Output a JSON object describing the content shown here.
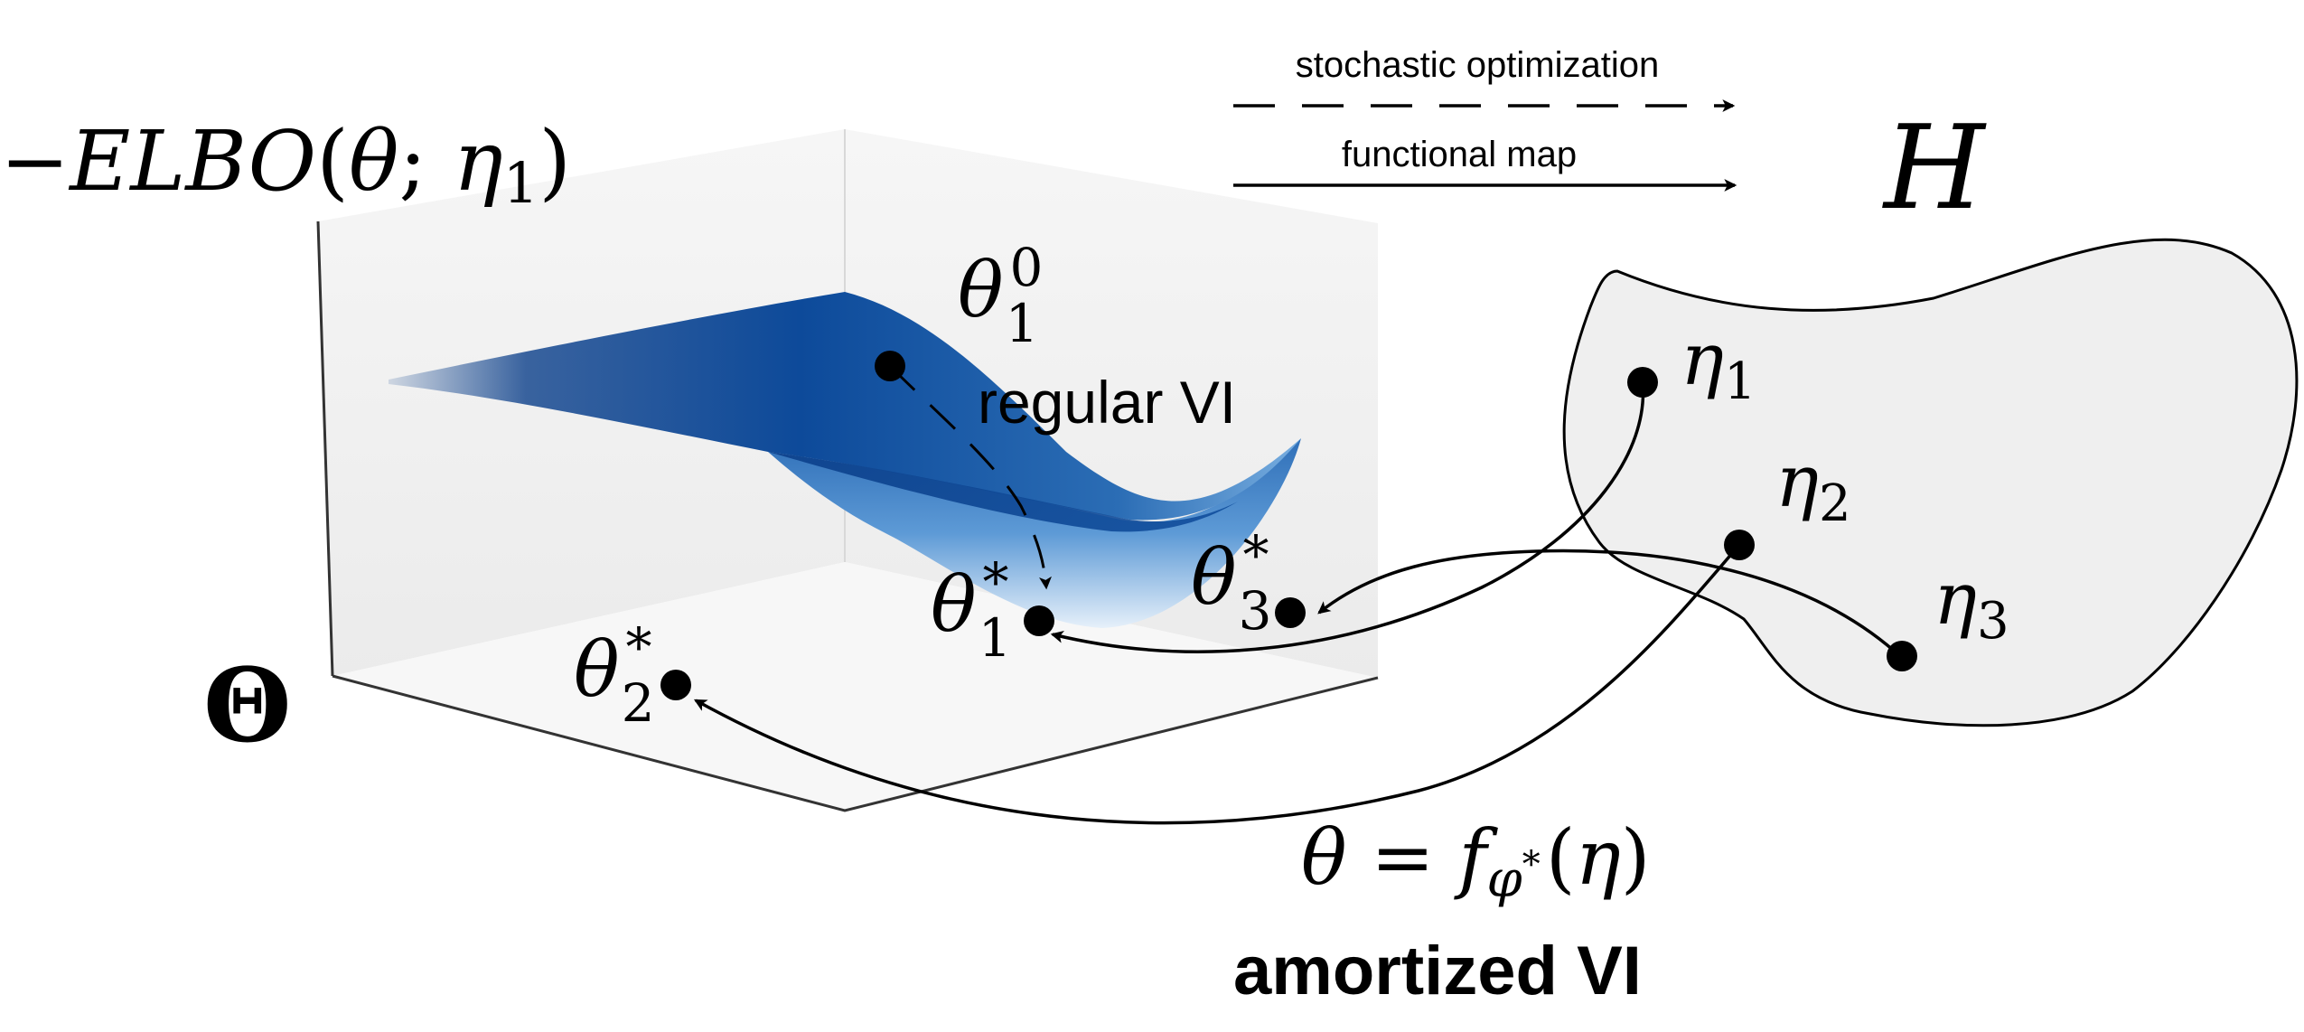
{
  "legend": {
    "dashed_label": "stochastic optimization",
    "solid_label": "functional map"
  },
  "labels": {
    "neg_elbo": {
      "minus": "−",
      "name": "ELBO",
      "open": "(",
      "theta": "θ",
      "semi": "; ",
      "eta": "η",
      "sub": "1",
      "close": ")"
    },
    "H": "H",
    "Theta": "Θ",
    "regular_vi": "regular VI",
    "amortized_vi": "amortized VI",
    "theta1_0": {
      "base": "θ",
      "sub": "1",
      "sup": "0"
    },
    "theta1_star": {
      "base": "θ",
      "sub": "1",
      "sup": "*"
    },
    "theta2_star": {
      "base": "θ",
      "sub": "2",
      "sup": "*"
    },
    "theta3_star": {
      "base": "θ",
      "sub": "3",
      "sup": "*"
    },
    "eta1": {
      "base": "η",
      "sub": "1"
    },
    "eta2": {
      "base": "η",
      "sub": "2"
    },
    "eta3": {
      "base": "η",
      "sub": "3"
    },
    "fmap": {
      "lhs": "θ",
      "eq": " = ",
      "f": "f",
      "phi": "φ",
      "star": "*",
      "open": "(",
      "eta": "η",
      "close": ")"
    }
  },
  "colors": {
    "ink": "#000000",
    "blob_fill": "#efefef",
    "box_face": "#f2f2f2",
    "surface_dark": "#0b3f8a",
    "surface_mid": "#2f6fb8",
    "surface_light": "#dce9f7"
  }
}
